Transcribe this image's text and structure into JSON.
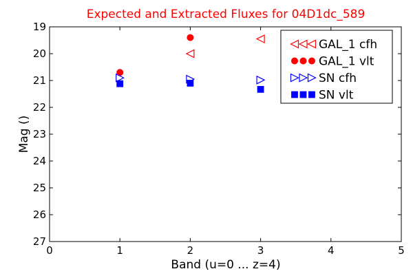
{
  "chart_data": {
    "type": "scatter",
    "title": "Expected and Extracted Fluxes for 04D1dc_589",
    "title_color": "#ff0000",
    "xlabel": "Band (u=0 ... z=4)",
    "ylabel": "Mag ()",
    "xlim": [
      0,
      5
    ],
    "ylim": [
      27,
      19
    ],
    "y_inverted": true,
    "x_ticks": [
      "0",
      "1",
      "2",
      "3",
      "4",
      "5"
    ],
    "y_ticks": [
      "19",
      "20",
      "21",
      "22",
      "23",
      "24",
      "25",
      "26",
      "27"
    ],
    "grid": false,
    "legend_position": "top-right",
    "series": [
      {
        "name": "GAL_1 cfh",
        "marker": "triangle-left",
        "filled": false,
        "color": "#ff0000",
        "x": [
          2,
          3
        ],
        "y": [
          20.0,
          19.45
        ]
      },
      {
        "name": "GAL_1 vlt",
        "marker": "circle",
        "filled": true,
        "color": "#ff0000",
        "x": [
          1,
          2
        ],
        "y": [
          20.7,
          19.4
        ]
      },
      {
        "name": "SN cfh",
        "marker": "triangle-right",
        "filled": false,
        "color": "#0000ff",
        "x": [
          1,
          2,
          3
        ],
        "y": [
          20.9,
          20.95,
          20.98
        ]
      },
      {
        "name": "SN vlt",
        "marker": "square",
        "filled": true,
        "color": "#0000ff",
        "x": [
          1,
          2,
          3
        ],
        "y": [
          21.12,
          21.1,
          21.33
        ]
      }
    ]
  }
}
